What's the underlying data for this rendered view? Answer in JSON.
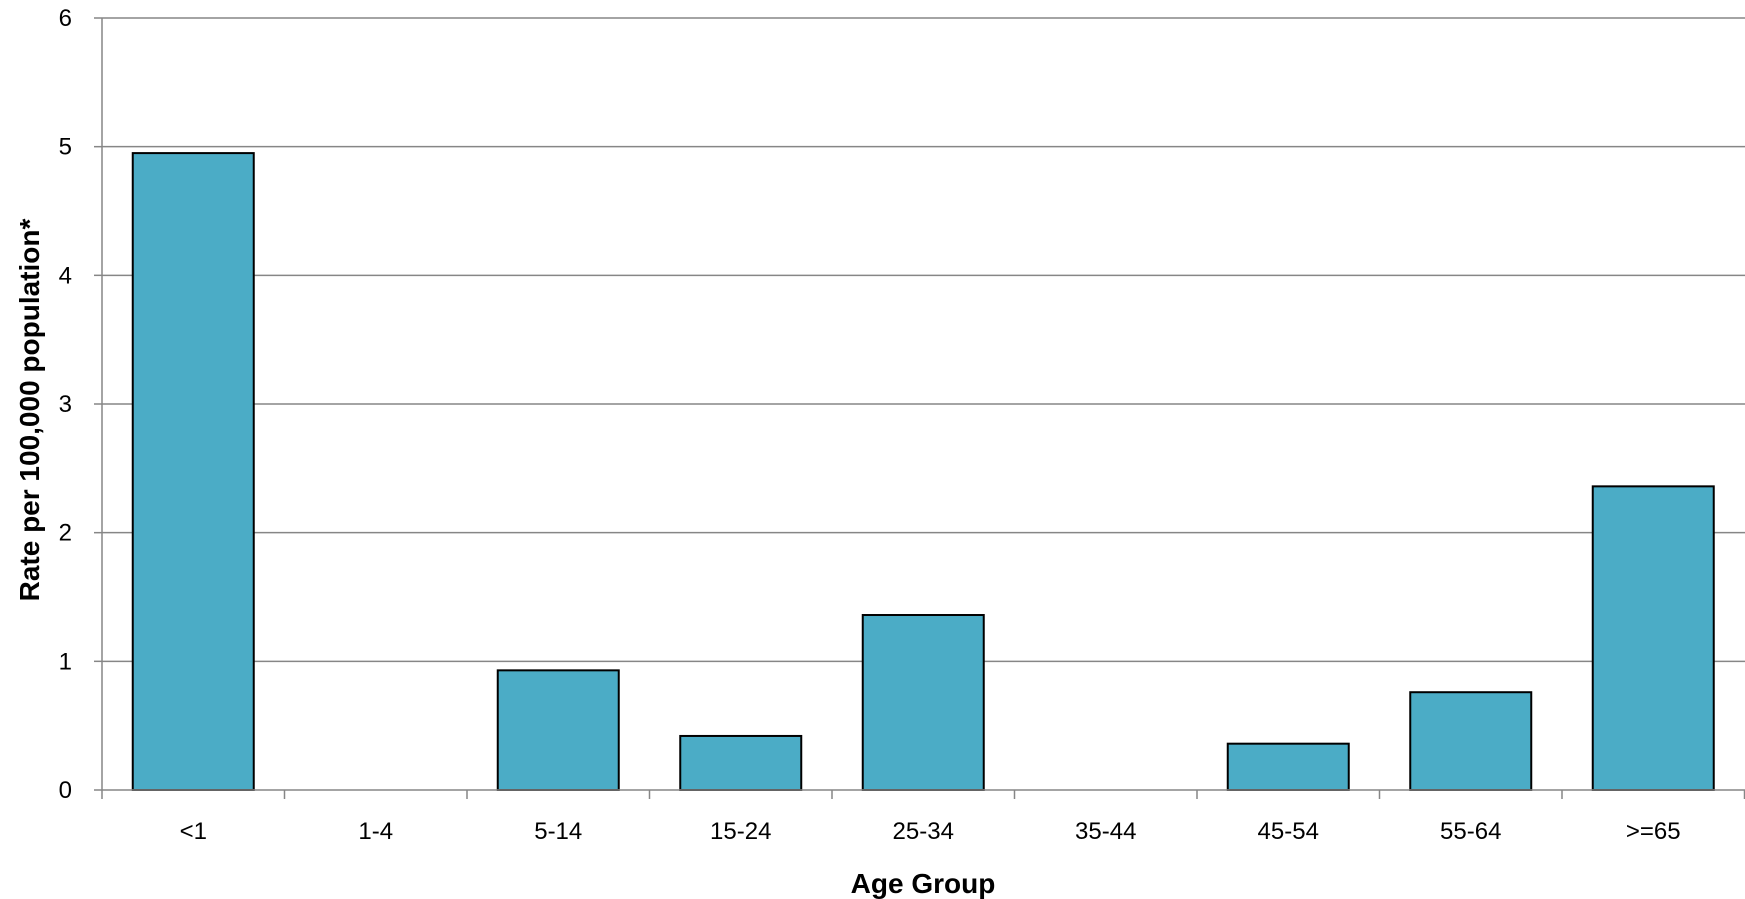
{
  "chart_data": {
    "type": "bar",
    "categories": [
      "<1",
      "1-4",
      "5-14",
      "15-24",
      "25-34",
      "35-44",
      "45-54",
      "55-64",
      ">=65"
    ],
    "values": [
      4.95,
      0,
      0.93,
      0.42,
      1.36,
      0,
      0.36,
      0.76,
      2.36
    ],
    "xlabel": "Age Group",
    "ylabel": "Rate per 100,000 population*",
    "ylim": [
      0,
      6
    ],
    "yticks": [
      "0",
      "1",
      "2",
      "3",
      "4",
      "5",
      "6"
    ],
    "grid": true,
    "legend": "none",
    "colors": {
      "bar_fill": "#4BACC6",
      "bar_stroke": "#000000",
      "grid": "#868686",
      "axis": "#868686"
    }
  }
}
